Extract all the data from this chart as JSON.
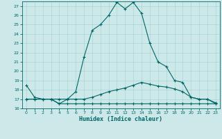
{
  "xlabel": "Humidex (Indice chaleur)",
  "xlim": [
    -0.5,
    23.5
  ],
  "ylim": [
    16,
    27.5
  ],
  "yticks": [
    16,
    17,
    18,
    19,
    20,
    21,
    22,
    23,
    24,
    25,
    26,
    27
  ],
  "xticks": [
    0,
    1,
    2,
    3,
    4,
    5,
    6,
    7,
    8,
    9,
    10,
    11,
    12,
    13,
    14,
    15,
    16,
    17,
    18,
    19,
    20,
    21,
    22,
    23
  ],
  "bg_color": "#cce8e8",
  "line_color": "#006666",
  "grid_color": "#aad4d4",
  "line1_y": [
    18.5,
    17.2,
    17.0,
    17.0,
    16.5,
    17.0,
    17.8,
    21.5,
    24.4,
    25.0,
    26.0,
    27.4,
    26.7,
    27.4,
    26.2,
    23.0,
    21.0,
    20.5,
    19.0,
    18.8,
    17.2,
    17.0,
    17.0,
    16.5
  ],
  "line2_y": [
    17.0,
    17.0,
    17.0,
    17.0,
    17.0,
    17.0,
    17.0,
    17.0,
    17.2,
    17.5,
    17.8,
    18.0,
    18.2,
    18.5,
    18.8,
    18.6,
    18.4,
    18.3,
    18.1,
    17.8,
    17.2,
    17.0,
    17.0,
    16.6
  ],
  "line3_y": [
    17.0,
    17.0,
    17.0,
    17.0,
    16.5,
    16.5,
    16.5,
    16.5,
    16.5,
    16.5,
    16.5,
    16.5,
    16.5,
    16.5,
    16.5,
    16.5,
    16.5,
    16.5,
    16.5,
    16.5,
    16.5,
    16.5,
    16.5,
    16.5
  ]
}
